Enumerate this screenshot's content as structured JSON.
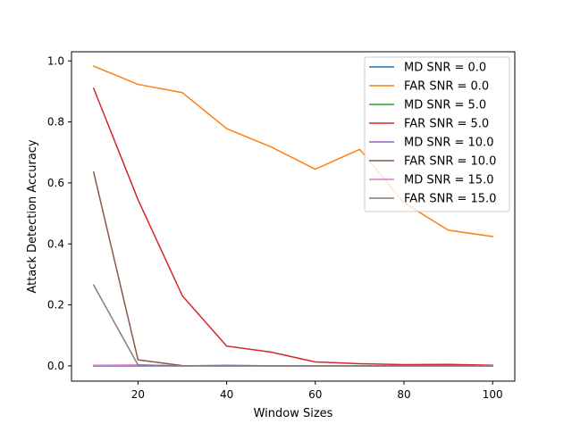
{
  "chart_data": {
    "type": "line",
    "title": "",
    "xlabel": "Window Sizes",
    "ylabel": "Attack Detection Accuracy",
    "xlim": [
      5,
      105
    ],
    "ylim": [
      -0.05,
      1.03
    ],
    "x_ticks": [
      20,
      40,
      60,
      80,
      100
    ],
    "x_tick_labels": [
      "20",
      "40",
      "60",
      "80",
      "100"
    ],
    "y_ticks": [
      0.0,
      0.2,
      0.4,
      0.6,
      0.8,
      1.0
    ],
    "y_tick_labels": [
      "0.0",
      "0.2",
      "0.4",
      "0.6",
      "0.8",
      "1.0"
    ],
    "grid": false,
    "legend_position": "top-right",
    "x": [
      10,
      20,
      30,
      40,
      50,
      60,
      70,
      80,
      90,
      100
    ],
    "series": [
      {
        "name": "MD SNR = 0.0",
        "color": "#1f77b4",
        "values": [
          0.0,
          0.0,
          0.0,
          0.0,
          0.0,
          0.0,
          0.0,
          0.0,
          0.0,
          0.0
        ]
      },
      {
        "name": "FAR SNR = 0.0",
        "color": "#ff7f0e",
        "values": [
          0.983,
          0.923,
          0.896,
          0.778,
          0.718,
          0.645,
          0.71,
          0.535,
          0.445,
          0.424
        ]
      },
      {
        "name": "MD SNR = 5.0",
        "color": "#2ca02c",
        "values": [
          0.0,
          0.0,
          0.0,
          0.0,
          0.0,
          0.0,
          0.0,
          0.0,
          0.0,
          0.0
        ]
      },
      {
        "name": "FAR SNR = 5.0",
        "color": "#d62728",
        "values": [
          0.91,
          0.545,
          0.23,
          0.065,
          0.045,
          0.013,
          0.007,
          0.004,
          0.005,
          0.002
        ]
      },
      {
        "name": "MD SNR = 10.0",
        "color": "#9467bd",
        "values": [
          0.0,
          0.0,
          0.0,
          0.002,
          0.0,
          0.0,
          0.0,
          0.0,
          0.0,
          0.0
        ]
      },
      {
        "name": "FAR SNR = 10.0",
        "color": "#8c564b",
        "values": [
          0.635,
          0.02,
          0.001,
          0.0,
          0.0,
          0.0,
          0.0,
          0.0,
          0.0,
          0.0
        ]
      },
      {
        "name": "MD SNR = 15.0",
        "color": "#e377c2",
        "values": [
          0.002,
          0.003,
          0.0,
          0.0,
          0.0,
          0.0,
          0.0,
          0.0,
          0.0,
          0.0
        ]
      },
      {
        "name": "FAR SNR = 15.0",
        "color": "#7f7f7f",
        "values": [
          0.265,
          0.003,
          0.0,
          0.0,
          0.0,
          0.0,
          0.0,
          0.0,
          0.0,
          0.0
        ]
      }
    ]
  }
}
